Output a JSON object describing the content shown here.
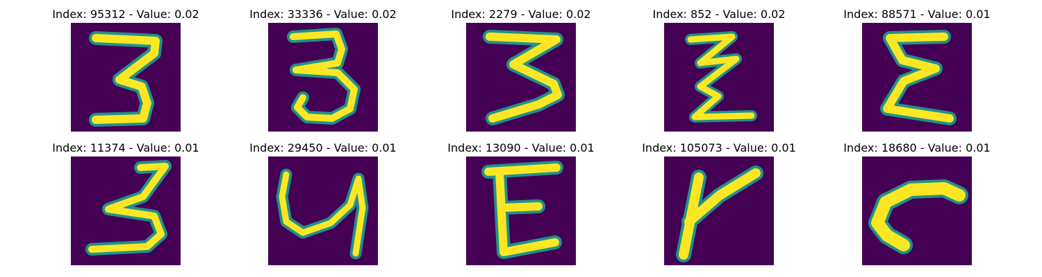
{
  "colormap": {
    "background": "#440154",
    "mid": "#21918c",
    "high": "#fde725"
  },
  "panels": [
    {
      "title": "Index: 95312 - Value: 0.02",
      "depicts": "handwritten-3"
    },
    {
      "title": "Index: 33336 - Value: 0.02",
      "depicts": "handwritten-3"
    },
    {
      "title": "Index: 2279 - Value: 0.02",
      "depicts": "handwritten-3"
    },
    {
      "title": "Index: 852 - Value: 0.02",
      "depicts": "handwritten-3-zigzag"
    },
    {
      "title": "Index: 88571 - Value: 0.01",
      "depicts": "handwritten-epsilon"
    },
    {
      "title": "Index: 11374 - Value: 0.01",
      "depicts": "handwritten-3"
    },
    {
      "title": "Index: 29450 - Value: 0.01",
      "depicts": "handwritten-4-open"
    },
    {
      "title": "Index: 13090 - Value: 0.01",
      "depicts": "handwritten-E"
    },
    {
      "title": "Index: 105073 - Value: 0.01",
      "depicts": "handwritten-k"
    },
    {
      "title": "Index: 18680 - Value: 0.01",
      "depicts": "handwritten-r"
    }
  ]
}
